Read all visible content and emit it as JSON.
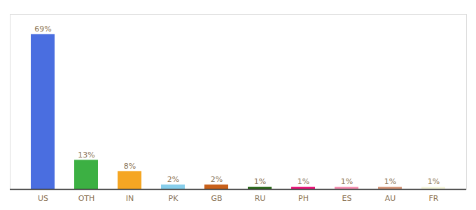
{
  "chart_data": {
    "type": "bar",
    "categories": [
      "US",
      "OTH",
      "IN",
      "PK",
      "GB",
      "RU",
      "PH",
      "ES",
      "AU",
      "FR"
    ],
    "values": [
      69,
      13,
      8,
      2,
      2,
      1,
      1,
      1,
      1,
      1
    ],
    "value_labels": [
      "69%",
      "13%",
      "8%",
      "2%",
      "2%",
      "1%",
      "1%",
      "1%",
      "1%",
      "1%"
    ],
    "colors": [
      "#4a6ee0",
      "#3cb043",
      "#f5a623",
      "#87ceeb",
      "#c8601a",
      "#2e6b1e",
      "#e8187a",
      "#f48fb1",
      "#d4967a",
      "#f5f5dc"
    ],
    "ylim": [
      0,
      78
    ],
    "tick_labels": "x",
    "data_labels": true
  }
}
